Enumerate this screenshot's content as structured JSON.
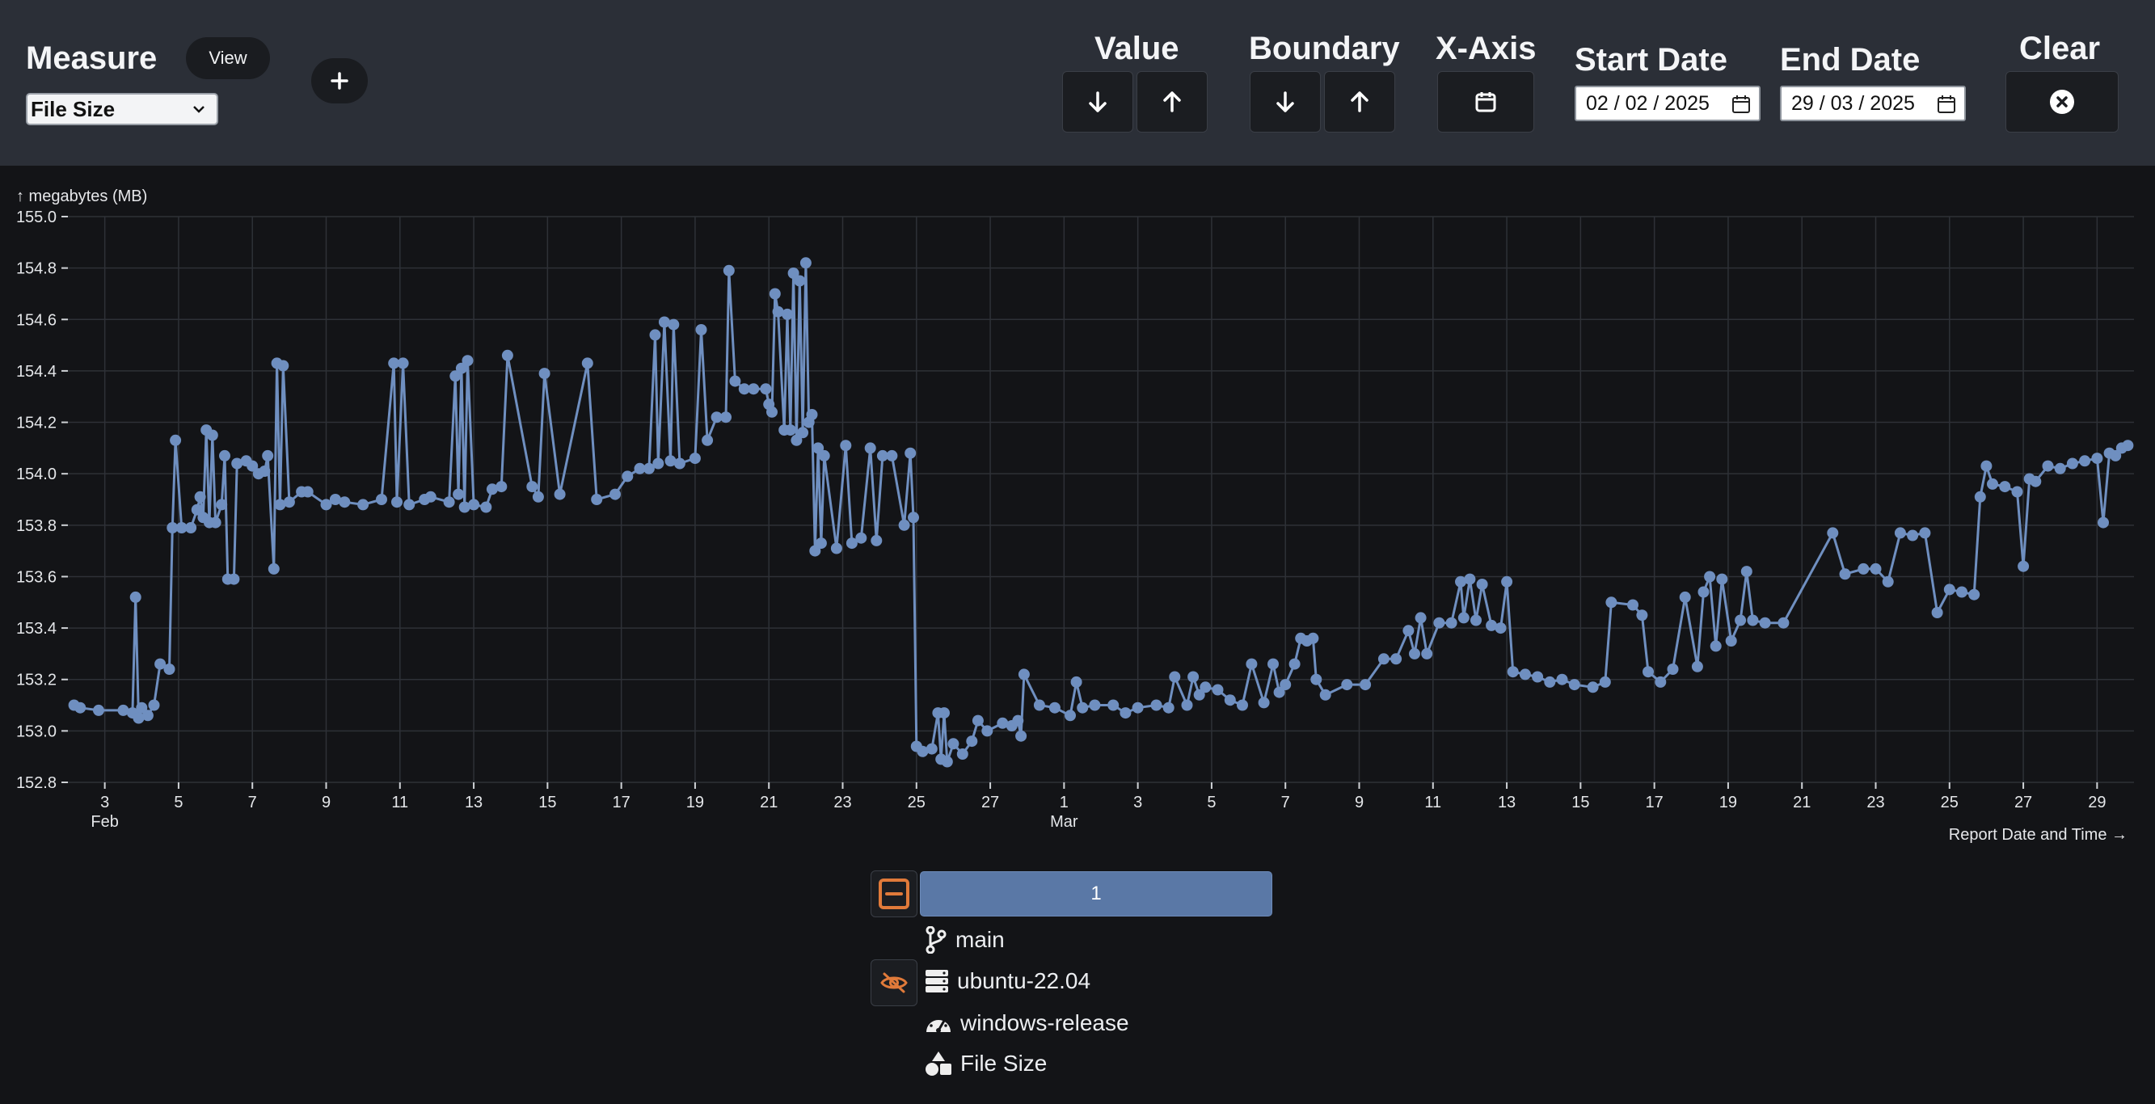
{
  "toolbar": {
    "measure_label": "Measure",
    "view_label": "View",
    "add_symbol": "+",
    "measure_selected": "File Size",
    "value_label": "Value",
    "boundary_label": "Boundary",
    "xaxis_label": "X-Axis",
    "start_date_label": "Start Date",
    "start_date_value": "02 / 02 / 2025",
    "end_date_label": "End Date",
    "end_date_value": "29 / 03 / 2025",
    "clear_label": "Clear"
  },
  "chart_data": {
    "type": "line",
    "ylabel": "↑ megabytes (MB)",
    "xlabel": "Report Date and Time →",
    "ylim": [
      152.8,
      155.0
    ],
    "yticks": [
      152.8,
      153.0,
      153.2,
      153.4,
      153.6,
      153.8,
      154.0,
      154.2,
      154.4,
      154.6,
      154.8,
      155.0
    ],
    "xlim": [
      "2025-02-02",
      "2025-03-30"
    ],
    "xticks": [
      {
        "date": "2025-02-03",
        "label": "3",
        "sub": "Feb"
      },
      {
        "date": "2025-02-05",
        "label": "5"
      },
      {
        "date": "2025-02-07",
        "label": "7"
      },
      {
        "date": "2025-02-09",
        "label": "9"
      },
      {
        "date": "2025-02-11",
        "label": "11"
      },
      {
        "date": "2025-02-13",
        "label": "13"
      },
      {
        "date": "2025-02-15",
        "label": "15"
      },
      {
        "date": "2025-02-17",
        "label": "17"
      },
      {
        "date": "2025-02-19",
        "label": "19"
      },
      {
        "date": "2025-02-21",
        "label": "21"
      },
      {
        "date": "2025-02-23",
        "label": "23"
      },
      {
        "date": "2025-02-25",
        "label": "25"
      },
      {
        "date": "2025-02-27",
        "label": "27"
      },
      {
        "date": "2025-03-01",
        "label": "1",
        "sub": "Mar"
      },
      {
        "date": "2025-03-03",
        "label": "3"
      },
      {
        "date": "2025-03-05",
        "label": "5"
      },
      {
        "date": "2025-03-07",
        "label": "7"
      },
      {
        "date": "2025-03-09",
        "label": "9"
      },
      {
        "date": "2025-03-11",
        "label": "11"
      },
      {
        "date": "2025-03-13",
        "label": "13"
      },
      {
        "date": "2025-03-15",
        "label": "15"
      },
      {
        "date": "2025-03-17",
        "label": "17"
      },
      {
        "date": "2025-03-19",
        "label": "19"
      },
      {
        "date": "2025-03-21",
        "label": "21"
      },
      {
        "date": "2025-03-23",
        "label": "23"
      },
      {
        "date": "2025-03-25",
        "label": "25"
      },
      {
        "date": "2025-03-27",
        "label": "27"
      },
      {
        "date": "2025-03-29",
        "label": "29"
      }
    ],
    "grid": true,
    "series_color": "#6f8fc0",
    "points": [
      [
        "2025-02-02 04:00",
        153.1
      ],
      [
        "2025-02-02 08:00",
        153.09
      ],
      [
        "2025-02-02 20:00",
        153.08
      ],
      [
        "2025-02-03 12:00",
        153.08
      ],
      [
        "2025-02-03 18:00",
        153.07
      ],
      [
        "2025-02-03 20:00",
        153.52
      ],
      [
        "2025-02-03 22:00",
        153.05
      ],
      [
        "2025-02-04 00:00",
        153.09
      ],
      [
        "2025-02-04 04:00",
        153.06
      ],
      [
        "2025-02-04 08:00",
        153.1
      ],
      [
        "2025-02-04 12:00",
        153.26
      ],
      [
        "2025-02-04 18:00",
        153.24
      ],
      [
        "2025-02-04 20:00",
        153.79
      ],
      [
        "2025-02-04 22:00",
        154.13
      ],
      [
        "2025-02-05 02:00",
        153.79
      ],
      [
        "2025-02-05 08:00",
        153.79
      ],
      [
        "2025-02-05 12:00",
        153.86
      ],
      [
        "2025-02-05 14:00",
        153.91
      ],
      [
        "2025-02-05 16:00",
        153.83
      ],
      [
        "2025-02-05 18:00",
        154.17
      ],
      [
        "2025-02-05 20:00",
        153.81
      ],
      [
        "2025-02-05 22:00",
        154.15
      ],
      [
        "2025-02-06 00:00",
        153.81
      ],
      [
        "2025-02-06 04:00",
        153.88
      ],
      [
        "2025-02-06 06:00",
        154.07
      ],
      [
        "2025-02-06 08:00",
        153.59
      ],
      [
        "2025-02-06 12:00",
        153.59
      ],
      [
        "2025-02-06 14:00",
        154.04
      ],
      [
        "2025-02-06 20:00",
        154.05
      ],
      [
        "2025-02-07 00:00",
        154.03
      ],
      [
        "2025-02-07 04:00",
        154.0
      ],
      [
        "2025-02-07 08:00",
        154.01
      ],
      [
        "2025-02-07 10:00",
        154.07
      ],
      [
        "2025-02-07 14:00",
        153.63
      ],
      [
        "2025-02-07 16:00",
        154.43
      ],
      [
        "2025-02-07 18:00",
        153.88
      ],
      [
        "2025-02-07 20:00",
        154.42
      ],
      [
        "2025-02-08 00:00",
        153.89
      ],
      [
        "2025-02-08 08:00",
        153.93
      ],
      [
        "2025-02-08 12:00",
        153.93
      ],
      [
        "2025-02-09 00:00",
        153.88
      ],
      [
        "2025-02-09 06:00",
        153.9
      ],
      [
        "2025-02-09 12:00",
        153.89
      ],
      [
        "2025-02-10 00:00",
        153.88
      ],
      [
        "2025-02-10 12:00",
        153.9
      ],
      [
        "2025-02-10 20:00",
        154.43
      ],
      [
        "2025-02-10 22:00",
        153.89
      ],
      [
        "2025-02-11 02:00",
        154.43
      ],
      [
        "2025-02-11 06:00",
        153.88
      ],
      [
        "2025-02-11 16:00",
        153.9
      ],
      [
        "2025-02-11 20:00",
        153.91
      ],
      [
        "2025-02-12 08:00",
        153.89
      ],
      [
        "2025-02-12 12:00",
        154.38
      ],
      [
        "2025-02-12 14:00",
        153.92
      ],
      [
        "2025-02-12 16:00",
        154.41
      ],
      [
        "2025-02-12 18:00",
        153.87
      ],
      [
        "2025-02-12 20:00",
        154.44
      ],
      [
        "2025-02-13 00:00",
        153.88
      ],
      [
        "2025-02-13 08:00",
        153.87
      ],
      [
        "2025-02-13 12:00",
        153.94
      ],
      [
        "2025-02-13 18:00",
        153.95
      ],
      [
        "2025-02-13 22:00",
        154.46
      ],
      [
        "2025-02-14 14:00",
        153.95
      ],
      [
        "2025-02-14 18:00",
        153.91
      ],
      [
        "2025-02-14 22:00",
        154.39
      ],
      [
        "2025-02-15 08:00",
        153.92
      ],
      [
        "2025-02-16 02:00",
        154.43
      ],
      [
        "2025-02-16 08:00",
        153.9
      ],
      [
        "2025-02-16 20:00",
        153.92
      ],
      [
        "2025-02-17 04:00",
        153.99
      ],
      [
        "2025-02-17 12:00",
        154.02
      ],
      [
        "2025-02-17 18:00",
        154.02
      ],
      [
        "2025-02-17 22:00",
        154.54
      ],
      [
        "2025-02-18 00:00",
        154.04
      ],
      [
        "2025-02-18 04:00",
        154.59
      ],
      [
        "2025-02-18 08:00",
        154.05
      ],
      [
        "2025-02-18 10:00",
        154.58
      ],
      [
        "2025-02-18 14:00",
        154.04
      ],
      [
        "2025-02-19 00:00",
        154.06
      ],
      [
        "2025-02-19 04:00",
        154.56
      ],
      [
        "2025-02-19 08:00",
        154.13
      ],
      [
        "2025-02-19 14:00",
        154.22
      ],
      [
        "2025-02-19 20:00",
        154.22
      ],
      [
        "2025-02-19 22:00",
        154.79
      ],
      [
        "2025-02-20 02:00",
        154.36
      ],
      [
        "2025-02-20 08:00",
        154.33
      ],
      [
        "2025-02-20 14:00",
        154.33
      ],
      [
        "2025-02-20 22:00",
        154.33
      ],
      [
        "2025-02-21 00:00",
        154.27
      ],
      [
        "2025-02-21 02:00",
        154.24
      ],
      [
        "2025-02-21 04:00",
        154.7
      ],
      [
        "2025-02-21 06:00",
        154.63
      ],
      [
        "2025-02-21 10:00",
        154.17
      ],
      [
        "2025-02-21 12:00",
        154.62
      ],
      [
        "2025-02-21 14:00",
        154.17
      ],
      [
        "2025-02-21 16:00",
        154.78
      ],
      [
        "2025-02-21 18:00",
        154.13
      ],
      [
        "2025-02-21 20:00",
        154.75
      ],
      [
        "2025-02-21 22:00",
        154.16
      ],
      [
        "2025-02-22 00:00",
        154.82
      ],
      [
        "2025-02-22 02:00",
        154.2
      ],
      [
        "2025-02-22 04:00",
        154.23
      ],
      [
        "2025-02-22 06:00",
        153.7
      ],
      [
        "2025-02-22 08:00",
        154.1
      ],
      [
        "2025-02-22 10:00",
        153.73
      ],
      [
        "2025-02-22 12:00",
        154.07
      ],
      [
        "2025-02-22 20:00",
        153.71
      ],
      [
        "2025-02-23 02:00",
        154.11
      ],
      [
        "2025-02-23 06:00",
        153.73
      ],
      [
        "2025-02-23 12:00",
        153.75
      ],
      [
        "2025-02-23 18:00",
        154.1
      ],
      [
        "2025-02-23 22:00",
        153.74
      ],
      [
        "2025-02-24 02:00",
        154.07
      ],
      [
        "2025-02-24 08:00",
        154.07
      ],
      [
        "2025-02-24 16:00",
        153.8
      ],
      [
        "2025-02-24 20:00",
        154.08
      ],
      [
        "2025-02-24 22:00",
        153.83
      ],
      [
        "2025-02-25 00:00",
        152.94
      ],
      [
        "2025-02-25 04:00",
        152.92
      ],
      [
        "2025-02-25 10:00",
        152.93
      ],
      [
        "2025-02-25 14:00",
        153.07
      ],
      [
        "2025-02-25 16:00",
        152.89
      ],
      [
        "2025-02-25 18:00",
        153.07
      ],
      [
        "2025-02-25 20:00",
        152.88
      ],
      [
        "2025-02-26 00:00",
        152.95
      ],
      [
        "2025-02-26 06:00",
        152.91
      ],
      [
        "2025-02-26 12:00",
        152.96
      ],
      [
        "2025-02-26 16:00",
        153.04
      ],
      [
        "2025-02-26 22:00",
        153.0
      ],
      [
        "2025-02-27 08:00",
        153.03
      ],
      [
        "2025-02-27 14:00",
        153.02
      ],
      [
        "2025-02-27 18:00",
        153.04
      ],
      [
        "2025-02-27 20:00",
        152.98
      ],
      [
        "2025-02-27 22:00",
        153.22
      ],
      [
        "2025-02-28 08:00",
        153.1
      ],
      [
        "2025-02-28 18:00",
        153.09
      ],
      [
        "2025-03-01 04:00",
        153.06
      ],
      [
        "2025-03-01 08:00",
        153.19
      ],
      [
        "2025-03-01 12:00",
        153.09
      ],
      [
        "2025-03-01 20:00",
        153.1
      ],
      [
        "2025-03-02 08:00",
        153.1
      ],
      [
        "2025-03-02 16:00",
        153.07
      ],
      [
        "2025-03-03 00:00",
        153.09
      ],
      [
        "2025-03-03 12:00",
        153.1
      ],
      [
        "2025-03-03 20:00",
        153.09
      ],
      [
        "2025-03-04 00:00",
        153.21
      ],
      [
        "2025-03-04 08:00",
        153.1
      ],
      [
        "2025-03-04 12:00",
        153.21
      ],
      [
        "2025-03-04 16:00",
        153.14
      ],
      [
        "2025-03-04 20:00",
        153.17
      ],
      [
        "2025-03-05 04:00",
        153.16
      ],
      [
        "2025-03-05 12:00",
        153.12
      ],
      [
        "2025-03-05 20:00",
        153.1
      ],
      [
        "2025-03-06 02:00",
        153.26
      ],
      [
        "2025-03-06 10:00",
        153.11
      ],
      [
        "2025-03-06 16:00",
        153.26
      ],
      [
        "2025-03-06 20:00",
        153.15
      ],
      [
        "2025-03-07 00:00",
        153.18
      ],
      [
        "2025-03-07 06:00",
        153.26
      ],
      [
        "2025-03-07 10:00",
        153.36
      ],
      [
        "2025-03-07 14:00",
        153.35
      ],
      [
        "2025-03-07 18:00",
        153.36
      ],
      [
        "2025-03-07 20:00",
        153.2
      ],
      [
        "2025-03-08 02:00",
        153.14
      ],
      [
        "2025-03-08 16:00",
        153.18
      ],
      [
        "2025-03-09 04:00",
        153.18
      ],
      [
        "2025-03-09 16:00",
        153.28
      ],
      [
        "2025-03-10 00:00",
        153.28
      ],
      [
        "2025-03-10 08:00",
        153.39
      ],
      [
        "2025-03-10 12:00",
        153.3
      ],
      [
        "2025-03-10 16:00",
        153.44
      ],
      [
        "2025-03-10 20:00",
        153.3
      ],
      [
        "2025-03-11 04:00",
        153.42
      ],
      [
        "2025-03-11 12:00",
        153.42
      ],
      [
        "2025-03-11 18:00",
        153.58
      ],
      [
        "2025-03-11 20:00",
        153.44
      ],
      [
        "2025-03-12 00:00",
        153.59
      ],
      [
        "2025-03-12 04:00",
        153.43
      ],
      [
        "2025-03-12 08:00",
        153.57
      ],
      [
        "2025-03-12 14:00",
        153.41
      ],
      [
        "2025-03-12 20:00",
        153.4
      ],
      [
        "2025-03-13 00:00",
        153.58
      ],
      [
        "2025-03-13 04:00",
        153.23
      ],
      [
        "2025-03-13 12:00",
        153.22
      ],
      [
        "2025-03-13 20:00",
        153.21
      ],
      [
        "2025-03-14 04:00",
        153.19
      ],
      [
        "2025-03-14 12:00",
        153.2
      ],
      [
        "2025-03-14 20:00",
        153.18
      ],
      [
        "2025-03-15 08:00",
        153.17
      ],
      [
        "2025-03-15 16:00",
        153.19
      ],
      [
        "2025-03-15 20:00",
        153.5
      ],
      [
        "2025-03-16 10:00",
        153.49
      ],
      [
        "2025-03-16 16:00",
        153.45
      ],
      [
        "2025-03-16 20:00",
        153.23
      ],
      [
        "2025-03-17 04:00",
        153.19
      ],
      [
        "2025-03-17 12:00",
        153.24
      ],
      [
        "2025-03-17 20:00",
        153.52
      ],
      [
        "2025-03-18 04:00",
        153.25
      ],
      [
        "2025-03-18 08:00",
        153.54
      ],
      [
        "2025-03-18 12:00",
        153.6
      ],
      [
        "2025-03-18 16:00",
        153.33
      ],
      [
        "2025-03-18 20:00",
        153.59
      ],
      [
        "2025-03-19 02:00",
        153.35
      ],
      [
        "2025-03-19 08:00",
        153.43
      ],
      [
        "2025-03-19 12:00",
        153.62
      ],
      [
        "2025-03-19 16:00",
        153.43
      ],
      [
        "2025-03-20 00:00",
        153.42
      ],
      [
        "2025-03-20 12:00",
        153.42
      ],
      [
        "2025-03-21 20:00",
        153.77
      ],
      [
        "2025-03-22 04:00",
        153.61
      ],
      [
        "2025-03-22 16:00",
        153.63
      ],
      [
        "2025-03-23 00:00",
        153.63
      ],
      [
        "2025-03-23 08:00",
        153.58
      ],
      [
        "2025-03-23 16:00",
        153.77
      ],
      [
        "2025-03-24 00:00",
        153.76
      ],
      [
        "2025-03-24 08:00",
        153.77
      ],
      [
        "2025-03-24 16:00",
        153.46
      ],
      [
        "2025-03-25 00:00",
        153.55
      ],
      [
        "2025-03-25 08:00",
        153.54
      ],
      [
        "2025-03-25 16:00",
        153.53
      ],
      [
        "2025-03-25 20:00",
        153.91
      ],
      [
        "2025-03-26 00:00",
        154.03
      ],
      [
        "2025-03-26 04:00",
        153.96
      ],
      [
        "2025-03-26 12:00",
        153.95
      ],
      [
        "2025-03-26 20:00",
        153.93
      ],
      [
        "2025-03-27 00:00",
        153.64
      ],
      [
        "2025-03-27 04:00",
        153.98
      ],
      [
        "2025-03-27 08:00",
        153.97
      ],
      [
        "2025-03-27 16:00",
        154.03
      ],
      [
        "2025-03-28 00:00",
        154.02
      ],
      [
        "2025-03-28 08:00",
        154.04
      ],
      [
        "2025-03-28 16:00",
        154.05
      ],
      [
        "2025-03-29 00:00",
        154.06
      ],
      [
        "2025-03-29 04:00",
        153.81
      ],
      [
        "2025-03-29 08:00",
        154.08
      ],
      [
        "2025-03-29 12:00",
        154.07
      ],
      [
        "2025-03-29 16:00",
        154.1
      ],
      [
        "2025-03-29 20:00",
        154.11
      ]
    ]
  },
  "legend": {
    "bar_label": "1",
    "branch": "main",
    "testbed": "ubuntu-22.04",
    "benchmark": "windows-release",
    "measure": "File Size"
  }
}
